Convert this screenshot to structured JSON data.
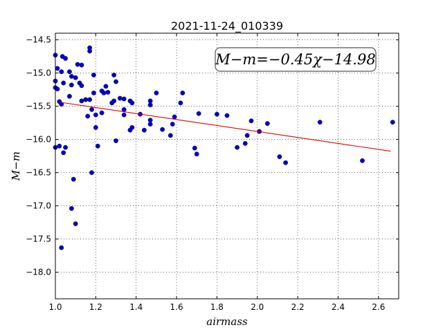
{
  "chart_data": {
    "type": "scatter",
    "title": "2021-11-24_010339",
    "xlabel": "airmass",
    "ylabel": "M−m",
    "xlim": [
      1.0,
      2.7
    ],
    "ylim": [
      -14.4,
      -18.4
    ],
    "y_inverted": true,
    "grid": true,
    "x_ticks": [
      "1.0",
      "1.2",
      "1.4",
      "1.6",
      "1.8",
      "2.0",
      "2.2",
      "2.4",
      "2.6"
    ],
    "x_tick_values": [
      1.0,
      1.2,
      1.4,
      1.6,
      1.8,
      2.0,
      2.2,
      2.4,
      2.6
    ],
    "y_ticks": [
      "−14.5",
      "−15.0",
      "−15.5",
      "−16.0",
      "−16.5",
      "−17.0",
      "−17.5",
      "−18.0"
    ],
    "y_tick_values": [
      -14.5,
      -15.0,
      -15.5,
      -16.0,
      -16.5,
      -17.0,
      -17.5,
      -18.0
    ],
    "annotation": "M−m=−0.45χ−14.98",
    "annotation_position": "top-right",
    "point_color": "#0000cc",
    "fit_color": "#dd0000",
    "fit": {
      "slope": -0.45,
      "intercept": -14.98,
      "x_range": [
        1.02,
        2.66
      ]
    },
    "points": [
      [
        1.0,
        -14.73
      ],
      [
        1.0,
        -15.12
      ],
      [
        1.0,
        -15.22
      ],
      [
        1.0,
        -16.12
      ],
      [
        1.01,
        -14.93
      ],
      [
        1.01,
        -15.24
      ],
      [
        1.02,
        -15.43
      ],
      [
        1.02,
        -16.1
      ],
      [
        1.03,
        -14.98
      ],
      [
        1.03,
        -15.47
      ],
      [
        1.03,
        -17.63
      ],
      [
        1.035,
        -14.75
      ],
      [
        1.04,
        -15.15
      ],
      [
        1.04,
        -16.2
      ],
      [
        1.05,
        -14.78
      ],
      [
        1.05,
        -16.12
      ],
      [
        1.07,
        -14.98
      ],
      [
        1.07,
        -15.35
      ],
      [
        1.08,
        -17.04
      ],
      [
        1.08,
        -15.05
      ],
      [
        1.08,
        -15.18
      ],
      [
        1.09,
        -16.6
      ],
      [
        1.1,
        -15.07
      ],
      [
        1.1,
        -17.27
      ],
      [
        1.11,
        -14.87
      ],
      [
        1.12,
        -15.15
      ],
      [
        1.13,
        -15.19
      ],
      [
        1.13,
        -15.42
      ],
      [
        1.13,
        -14.88
      ],
      [
        1.15,
        -15.4
      ],
      [
        1.16,
        -15.65
      ],
      [
        1.17,
        -14.62
      ],
      [
        1.17,
        -14.67
      ],
      [
        1.17,
        -15.4
      ],
      [
        1.18,
        -16.5
      ],
      [
        1.18,
        -15.55
      ],
      [
        1.19,
        -15.03
      ],
      [
        1.19,
        -15.3
      ],
      [
        1.2,
        -15.63
      ],
      [
        1.2,
        -15.82
      ],
      [
        1.21,
        -16.1
      ],
      [
        1.23,
        -15.27
      ],
      [
        1.23,
        -15.6
      ],
      [
        1.24,
        -15.3
      ],
      [
        1.25,
        -15.2
      ],
      [
        1.26,
        -15.29
      ],
      [
        1.28,
        -15.45
      ],
      [
        1.29,
        -15.03
      ],
      [
        1.29,
        -15.42
      ],
      [
        1.3,
        -15.13
      ],
      [
        1.3,
        -16.02
      ],
      [
        1.32,
        -15.38
      ],
      [
        1.34,
        -15.39
      ],
      [
        1.34,
        -15.55
      ],
      [
        1.34,
        -15.63
      ],
      [
        1.37,
        -15.42
      ],
      [
        1.37,
        -15.86
      ],
      [
        1.38,
        -15.45
      ],
      [
        1.38,
        -15.82
      ],
      [
        1.42,
        -15.62
      ],
      [
        1.44,
        -15.86
      ],
      [
        1.47,
        -15.42
      ],
      [
        1.47,
        -15.48
      ],
      [
        1.47,
        -15.71
      ],
      [
        1.47,
        -15.77
      ],
      [
        1.5,
        -15.3
      ],
      [
        1.53,
        -15.85
      ],
      [
        1.57,
        -15.94
      ],
      [
        1.58,
        -15.77
      ],
      [
        1.59,
        -15.66
      ],
      [
        1.62,
        -15.45
      ],
      [
        1.63,
        -15.3
      ],
      [
        1.69,
        -16.13
      ],
      [
        1.7,
        -16.22
      ],
      [
        1.71,
        -15.61
      ],
      [
        1.8,
        -15.62
      ],
      [
        1.85,
        -15.64
      ],
      [
        1.9,
        -16.12
      ],
      [
        1.94,
        -16.06
      ],
      [
        1.95,
        -15.94
      ],
      [
        1.97,
        -15.72
      ],
      [
        2.01,
        -15.88
      ],
      [
        2.05,
        -15.76
      ],
      [
        2.11,
        -16.26
      ],
      [
        2.14,
        -16.35
      ],
      [
        2.31,
        -15.74
      ],
      [
        2.52,
        -16.32
      ],
      [
        2.67,
        -15.74
      ]
    ]
  }
}
